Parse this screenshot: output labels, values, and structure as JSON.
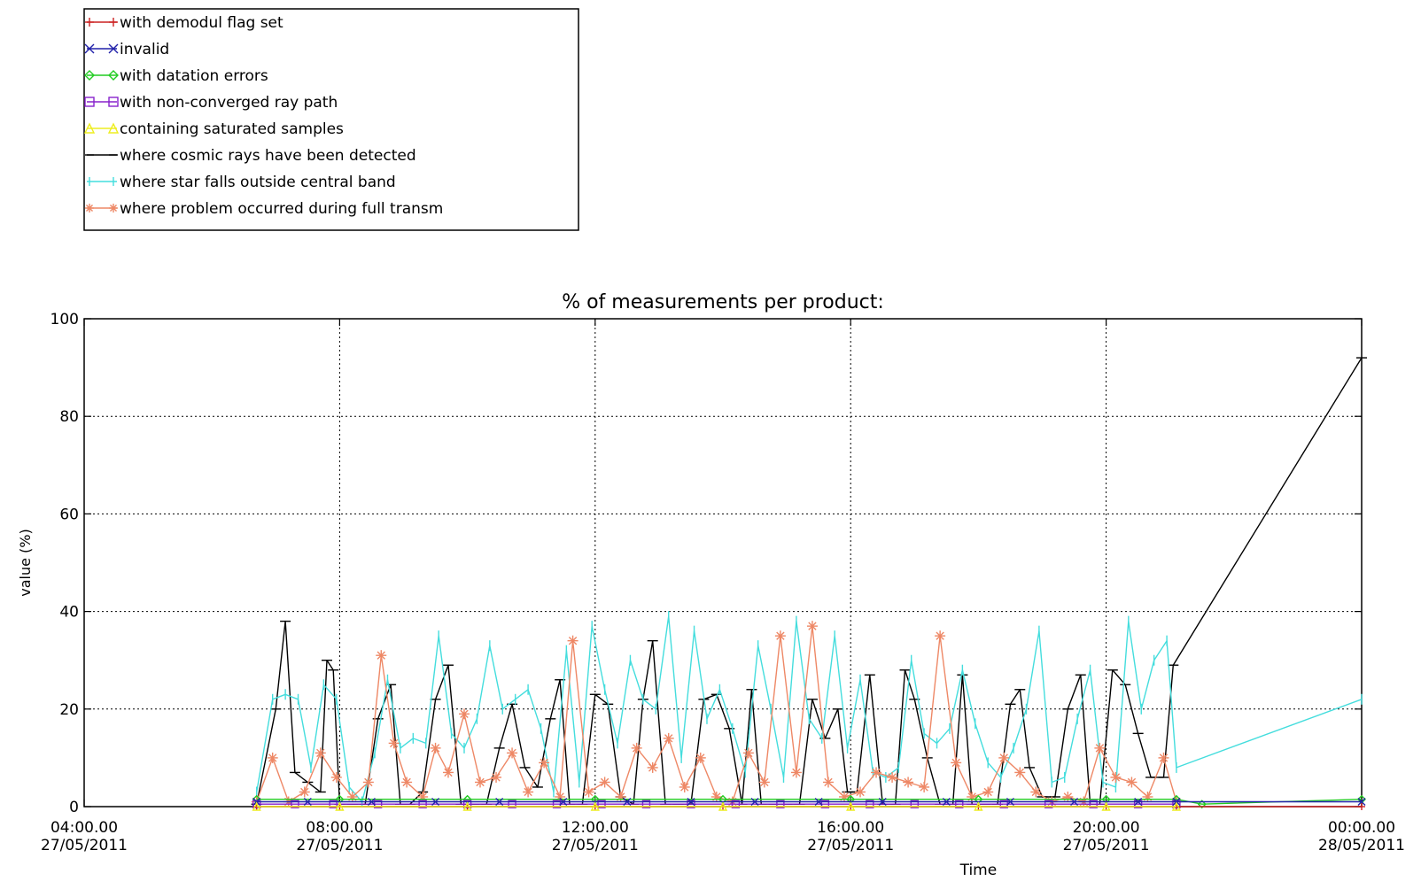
{
  "chart_data": {
    "type": "line",
    "title": "% of measurements per product:",
    "xlabel": "Time",
    "ylabel": "value (%)",
    "ylim": [
      0,
      100
    ],
    "yticks": [
      "0",
      "20",
      "40",
      "60",
      "80",
      "100"
    ],
    "xlim": [
      4,
      24
    ],
    "xticks": [
      {
        "x": 4,
        "label1": "04:00.00",
        "label2": "27/05/2011"
      },
      {
        "x": 8,
        "label1": "08:00.00",
        "label2": "27/05/2011"
      },
      {
        "x": 12,
        "label1": "12:00.00",
        "label2": "27/05/2011"
      },
      {
        "x": 16,
        "label1": "16:00.00",
        "label2": "27/05/2011"
      },
      {
        "x": 20,
        "label1": "20:00.00",
        "label2": "27/05/2011"
      },
      {
        "x": 24,
        "label1": "00:00.00",
        "label2": "28/05/2011"
      }
    ],
    "grid": true,
    "legend_position": "top-left, above plot",
    "series": [
      {
        "name": "with demodul flag set",
        "color": "#cc2222",
        "marker": "plus",
        "x": [
          6.7,
          8.0,
          10.0,
          12.0,
          14.0,
          16.0,
          18.0,
          20.0,
          21.1,
          24.0
        ],
        "values": [
          0,
          0,
          0,
          0,
          0,
          0,
          0,
          0,
          0,
          0
        ]
      },
      {
        "name": "invalid",
        "color": "#2222aa",
        "marker": "x",
        "x": [
          6.7,
          7.5,
          8.5,
          9.5,
          10.5,
          11.5,
          12.5,
          13.5,
          14.5,
          15.5,
          16.5,
          17.5,
          18.5,
          19.5,
          20.5,
          21.1,
          24.0
        ],
        "values": [
          1,
          1,
          1,
          1,
          1,
          1,
          1,
          1,
          1,
          1,
          1,
          1,
          1,
          1,
          1,
          1,
          1
        ]
      },
      {
        "name": "with datation errors",
        "color": "#22cc22",
        "marker": "diamond",
        "x": [
          6.7,
          8.0,
          10.0,
          12.0,
          14.0,
          16.0,
          18.0,
          20.0,
          21.1,
          21.5,
          24.0
        ],
        "values": [
          1.5,
          1.5,
          1.5,
          1.5,
          1.5,
          1.5,
          1.5,
          1.5,
          1.5,
          0.5,
          1.5
        ]
      },
      {
        "name": "with non-converged ray path",
        "color": "#8822cc",
        "marker": "square",
        "x": [
          6.7,
          7.3,
          7.9,
          8.6,
          9.3,
          10.0,
          10.7,
          11.4,
          12.1,
          12.8,
          13.5,
          14.2,
          14.9,
          15.6,
          16.3,
          17.0,
          17.7,
          18.4,
          19.1,
          19.8,
          20.5,
          21.1
        ],
        "values": [
          0.5,
          0.5,
          0.5,
          0.5,
          0.5,
          0.5,
          0.5,
          0.5,
          0.5,
          0.5,
          0.5,
          0.5,
          0.5,
          0.5,
          0.5,
          0.5,
          0.5,
          0.5,
          0.5,
          0.5,
          0.5,
          0.5
        ]
      },
      {
        "name": "containing saturated samples",
        "color": "#eeee22",
        "marker": "triangle",
        "x": [
          6.7,
          8.0,
          10.0,
          12.0,
          14.0,
          16.0,
          18.0,
          20.0,
          21.1
        ],
        "values": [
          0,
          0,
          0,
          0,
          0,
          0,
          0,
          0,
          0
        ]
      },
      {
        "name": "where cosmic rays have been detected",
        "color": "#000000",
        "marker": "hbar",
        "x": [
          6.7,
          7.0,
          7.15,
          7.3,
          7.5,
          7.7,
          7.8,
          7.9,
          8.0,
          8.2,
          8.4,
          8.6,
          8.8,
          8.95,
          9.1,
          9.3,
          9.5,
          9.7,
          9.9,
          10.1,
          10.3,
          10.5,
          10.7,
          10.9,
          11.1,
          11.3,
          11.45,
          11.6,
          11.8,
          12.0,
          12.2,
          12.4,
          12.6,
          12.75,
          12.9,
          13.1,
          13.3,
          13.5,
          13.7,
          13.9,
          14.1,
          14.3,
          14.45,
          14.6,
          14.8,
          15.0,
          15.2,
          15.4,
          15.6,
          15.8,
          15.95,
          16.1,
          16.3,
          16.5,
          16.7,
          16.85,
          17.0,
          17.2,
          17.4,
          17.6,
          17.75,
          17.9,
          18.1,
          18.3,
          18.5,
          18.65,
          18.8,
          19.0,
          19.2,
          19.4,
          19.6,
          19.75,
          19.9,
          20.1,
          20.3,
          20.5,
          20.7,
          20.9,
          21.05,
          24.0
        ],
        "values": [
          0.5,
          20,
          38,
          7,
          5,
          3,
          30,
          28,
          0.5,
          0.5,
          0.5,
          18,
          25,
          0.5,
          0.5,
          3,
          22,
          29,
          0.5,
          0.5,
          0.5,
          12,
          21,
          8,
          4,
          18,
          26,
          0.5,
          0.5,
          23,
          21,
          2,
          0.5,
          22,
          34,
          0.5,
          0.5,
          0.5,
          22,
          23,
          16,
          0.5,
          24,
          0.5,
          0.5,
          0.5,
          0.5,
          22,
          14,
          20,
          3,
          3,
          27,
          0.5,
          0.5,
          28,
          22,
          10,
          0.5,
          0.5,
          27,
          0.5,
          0.5,
          0.5,
          21,
          24,
          8,
          2,
          2,
          20,
          27,
          0.5,
          0.5,
          28,
          25,
          15,
          6,
          6,
          29,
          92
        ]
      },
      {
        "name": "where star falls outside central band",
        "color": "#44dddd",
        "marker": "vbar",
        "x": [
          6.7,
          6.95,
          7.15,
          7.35,
          7.55,
          7.75,
          7.95,
          8.15,
          8.35,
          8.55,
          8.75,
          8.95,
          9.15,
          9.35,
          9.55,
          9.75,
          9.95,
          10.15,
          10.35,
          10.55,
          10.75,
          10.95,
          11.15,
          11.35,
          11.55,
          11.75,
          11.95,
          12.15,
          12.35,
          12.55,
          12.75,
          12.95,
          13.15,
          13.35,
          13.55,
          13.75,
          13.95,
          14.15,
          14.35,
          14.55,
          14.75,
          14.95,
          15.15,
          15.35,
          15.55,
          15.75,
          15.95,
          16.15,
          16.35,
          16.55,
          16.75,
          16.95,
          17.15,
          17.35,
          17.55,
          17.75,
          17.95,
          18.15,
          18.35,
          18.55,
          18.75,
          18.95,
          19.15,
          19.35,
          19.55,
          19.75,
          19.95,
          20.15,
          20.35,
          20.55,
          20.75,
          20.95,
          21.1,
          24.0
        ],
        "values": [
          3,
          22,
          23,
          22,
          8,
          25,
          22,
          4,
          1,
          11,
          26,
          12,
          14,
          13,
          35,
          15,
          12,
          18,
          33,
          20,
          22,
          24,
          16,
          3,
          32,
          5,
          37,
          24,
          13,
          30,
          22,
          20,
          39,
          10,
          36,
          18,
          24,
          16,
          7,
          33,
          20,
          6,
          38,
          18,
          14,
          35,
          12,
          26,
          7,
          6,
          8,
          30,
          15,
          13,
          16,
          28,
          17,
          9,
          6,
          12,
          20,
          36,
          5,
          6,
          18,
          28,
          5,
          4,
          38,
          20,
          30,
          34,
          8,
          22
        ]
      },
      {
        "name": "where problem occurred during full transm",
        "color": "#ee8866",
        "marker": "asterisk",
        "x": [
          6.7,
          6.95,
          7.2,
          7.45,
          7.7,
          7.95,
          8.2,
          8.45,
          8.65,
          8.85,
          9.05,
          9.3,
          9.5,
          9.7,
          9.95,
          10.2,
          10.45,
          10.7,
          10.95,
          11.2,
          11.45,
          11.65,
          11.9,
          12.15,
          12.4,
          12.65,
          12.9,
          13.15,
          13.4,
          13.65,
          13.9,
          14.15,
          14.4,
          14.65,
          14.9,
          15.15,
          15.4,
          15.65,
          15.9,
          16.15,
          16.4,
          16.65,
          16.9,
          17.15,
          17.4,
          17.65,
          17.9,
          18.15,
          18.4,
          18.65,
          18.9,
          19.15,
          19.4,
          19.65,
          19.9,
          20.15,
          20.4,
          20.65,
          20.9,
          21.1
        ],
        "values": [
          1,
          10,
          1,
          3,
          11,
          6,
          2,
          5,
          31,
          13,
          5,
          2,
          12,
          7,
          19,
          5,
          6,
          11,
          3,
          9,
          2,
          34,
          3,
          5,
          2,
          12,
          8,
          14,
          4,
          10,
          2,
          1,
          11,
          5,
          35,
          7,
          37,
          5,
          2,
          3,
          7,
          6,
          5,
          4,
          35,
          9,
          2,
          3,
          10,
          7,
          3,
          1,
          2,
          1,
          12,
          6,
          5,
          2,
          10,
          1
        ]
      }
    ]
  }
}
